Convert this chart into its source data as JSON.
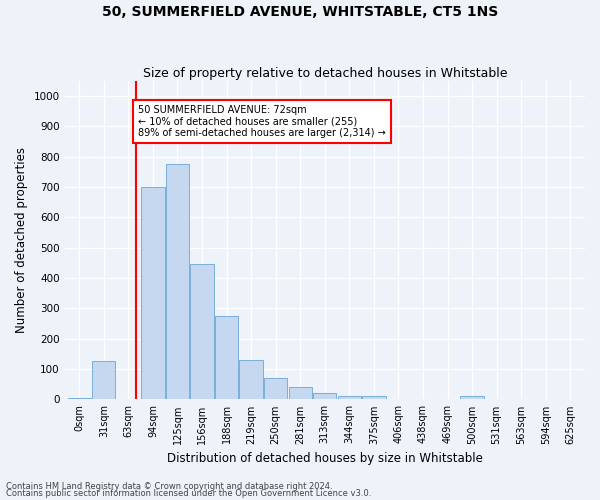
{
  "title": "50, SUMMERFIELD AVENUE, WHITSTABLE, CT5 1NS",
  "subtitle": "Size of property relative to detached houses in Whitstable",
  "xlabel": "Distribution of detached houses by size in Whitstable",
  "ylabel": "Number of detached properties",
  "bar_color": "#c5d8f0",
  "bar_edge_color": "#7aafda",
  "bin_labels": [
    "0sqm",
    "31sqm",
    "63sqm",
    "94sqm",
    "125sqm",
    "156sqm",
    "188sqm",
    "219sqm",
    "250sqm",
    "281sqm",
    "313sqm",
    "344sqm",
    "375sqm",
    "406sqm",
    "438sqm",
    "469sqm",
    "500sqm",
    "531sqm",
    "563sqm",
    "594sqm",
    "625sqm"
  ],
  "bar_values": [
    5,
    125,
    0,
    700,
    775,
    445,
    275,
    130,
    70,
    40,
    22,
    12,
    12,
    0,
    0,
    0,
    10,
    0,
    0,
    0,
    0
  ],
  "ylim": [
    0,
    1050
  ],
  "yticks": [
    0,
    100,
    200,
    300,
    400,
    500,
    600,
    700,
    800,
    900,
    1000
  ],
  "red_line_bin_index": 2.32,
  "annotation_text": "50 SUMMERFIELD AVENUE: 72sqm\n← 10% of detached houses are smaller (255)\n89% of semi-detached houses are larger (2,314) →",
  "footer_line1": "Contains HM Land Registry data © Crown copyright and database right 2024.",
  "footer_line2": "Contains public sector information licensed under the Open Government Licence v3.0.",
  "background_color": "#eef2f9",
  "plot_bg_color": "#eef2f9",
  "grid_color": "#ffffff",
  "title_fontsize": 10,
  "subtitle_fontsize": 9,
  "xlabel_fontsize": 8.5,
  "ylabel_fontsize": 8.5,
  "tick_fontsize": 7,
  "ytick_fontsize": 7.5,
  "annot_fontsize": 7,
  "footer_fontsize": 6
}
